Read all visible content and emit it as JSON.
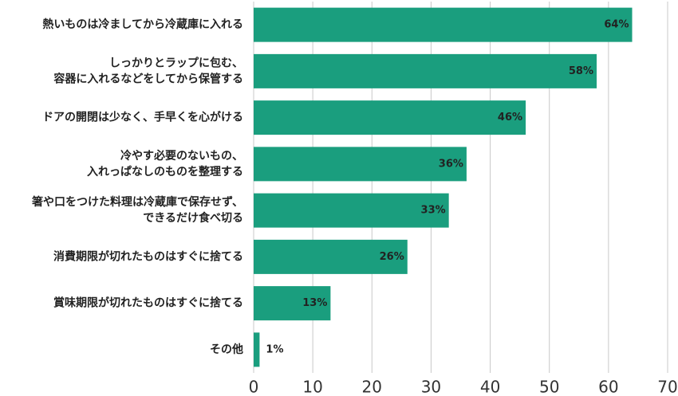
{
  "chart_data": {
    "type": "bar",
    "orientation": "horizontal",
    "categories": [
      [
        "熱いものは冷ましてから冷蔵庫に入れる"
      ],
      [
        "しっかりとラップに包む、",
        "容器に入れるなどをしてから保管する"
      ],
      [
        "ドアの開閉は少なく、手早くを心がける"
      ],
      [
        "冷やす必要のないもの、",
        "入れっぱなしのものを整理する"
      ],
      [
        "箸や口をつけた料理は冷蔵庫で保存せず、",
        "できるだけ食べ切る"
      ],
      [
        "消費期限が切れたものはすぐに捨てる"
      ],
      [
        "賞味期限が切れたものはすぐに捨てる"
      ],
      [
        "その他"
      ]
    ],
    "values": [
      64,
      58,
      46,
      36,
      33,
      26,
      13,
      1
    ],
    "value_labels": [
      "64%",
      "58%",
      "46%",
      "36%",
      "33%",
      "26%",
      "13%",
      "1%"
    ],
    "color": "#1a9e7e",
    "xlim": [
      0,
      70
    ],
    "xticks": [
      0,
      10,
      20,
      30,
      40,
      50,
      60,
      70
    ],
    "grid": true
  }
}
